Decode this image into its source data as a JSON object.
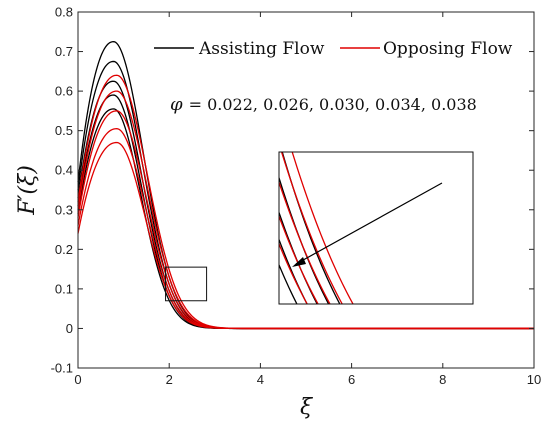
{
  "chart_data": {
    "type": "line",
    "xlabel": "ξ",
    "ylabel": "F′(ξ)",
    "xlim": [
      0,
      10
    ],
    "ylim": [
      -0.1,
      0.8
    ],
    "xticks": [
      "0",
      "2",
      "4",
      "6",
      "8",
      "10"
    ],
    "yticks": [
      "-0.1",
      "0",
      "0.1",
      "0.2",
      "0.3",
      "0.4",
      "0.5",
      "0.6",
      "0.7",
      "0.8"
    ],
    "legend": [
      {
        "label": "Assisting Flow",
        "color": "#000000"
      },
      {
        "label": "Opposing Flow",
        "color": "#e00000"
      }
    ],
    "legend_position": "top-right",
    "annotation": {
      "symbol": "φ",
      "values": "= 0.022, 0.026, 0.030, 0.034, 0.038"
    },
    "series_groups": [
      {
        "name": "Assisting Flow",
        "color": "#000000",
        "curves": [
          {
            "phi": 0.022,
            "y0": 0.37,
            "peak": 0.725,
            "xpeak": 0.78,
            "w": 0.93
          },
          {
            "phi": 0.026,
            "y0": 0.35,
            "peak": 0.675,
            "xpeak": 0.78,
            "w": 0.91
          },
          {
            "phi": 0.03,
            "y0": 0.33,
            "peak": 0.625,
            "xpeak": 0.78,
            "w": 0.89
          },
          {
            "phi": 0.034,
            "y0": 0.31,
            "peak": 0.59,
            "xpeak": 0.78,
            "w": 0.87
          },
          {
            "phi": 0.038,
            "y0": 0.29,
            "peak": 0.555,
            "xpeak": 0.78,
            "w": 0.85
          }
        ]
      },
      {
        "name": "Opposing Flow",
        "color": "#e00000",
        "curves": [
          {
            "phi": 0.022,
            "y0": 0.32,
            "peak": 0.64,
            "xpeak": 0.85,
            "w": 0.95
          },
          {
            "phi": 0.026,
            "y0": 0.3,
            "peak": 0.6,
            "xpeak": 0.85,
            "w": 0.93
          },
          {
            "phi": 0.03,
            "y0": 0.28,
            "peak": 0.55,
            "xpeak": 0.85,
            "w": 0.91
          },
          {
            "phi": 0.034,
            "y0": 0.26,
            "peak": 0.505,
            "xpeak": 0.85,
            "w": 0.89
          },
          {
            "phi": 0.038,
            "y0": 0.24,
            "peak": 0.47,
            "xpeak": 0.85,
            "w": 0.87
          }
        ]
      }
    ],
    "zoom_box": {
      "xrange": [
        1.92,
        2.82
      ],
      "yrange": [
        0.07,
        0.155
      ]
    },
    "grid": false
  }
}
